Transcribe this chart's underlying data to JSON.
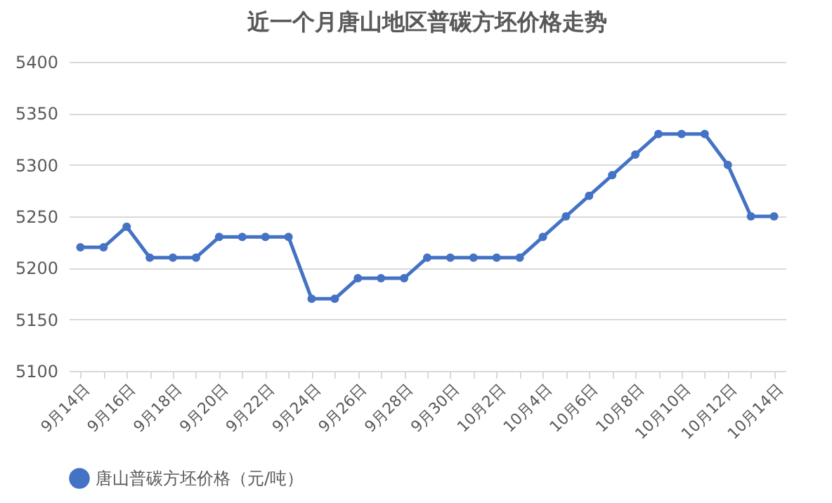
{
  "chart_data": {
    "type": "line",
    "title": "近一个月唐山地区普碳方坯价格走势",
    "categories": [
      "9月14日",
      null,
      "9月16日",
      null,
      "9月18日",
      null,
      "9月20日",
      null,
      "9月22日",
      null,
      "9月24日",
      null,
      "9月26日",
      null,
      "9月28日",
      null,
      "9月30日",
      null,
      "10月2日",
      null,
      "10月4日",
      null,
      "10月6日",
      null,
      "10月8日",
      null,
      "10月10日",
      null,
      "10月12日",
      null,
      "10月14日"
    ],
    "series": [
      {
        "name": "唐山普碳方坯价格（元/吨）",
        "color": "#4472c4",
        "values": [
          5220,
          5220,
          5240,
          5210,
          5210,
          5210,
          5230,
          5230,
          5230,
          5230,
          5170,
          5170,
          5190,
          5190,
          5190,
          5210,
          5210,
          5210,
          5210,
          5210,
          5230,
          5250,
          5270,
          5290,
          5310,
          5330,
          5330,
          5330,
          5300,
          5250,
          5250
        ]
      }
    ],
    "ylim": [
      5100,
      5400
    ],
    "yticks": [
      5100,
      5150,
      5200,
      5250,
      5300,
      5350,
      5400
    ],
    "grid": "y",
    "legend": "bottom",
    "marker": "circle",
    "line_style": "solid"
  }
}
